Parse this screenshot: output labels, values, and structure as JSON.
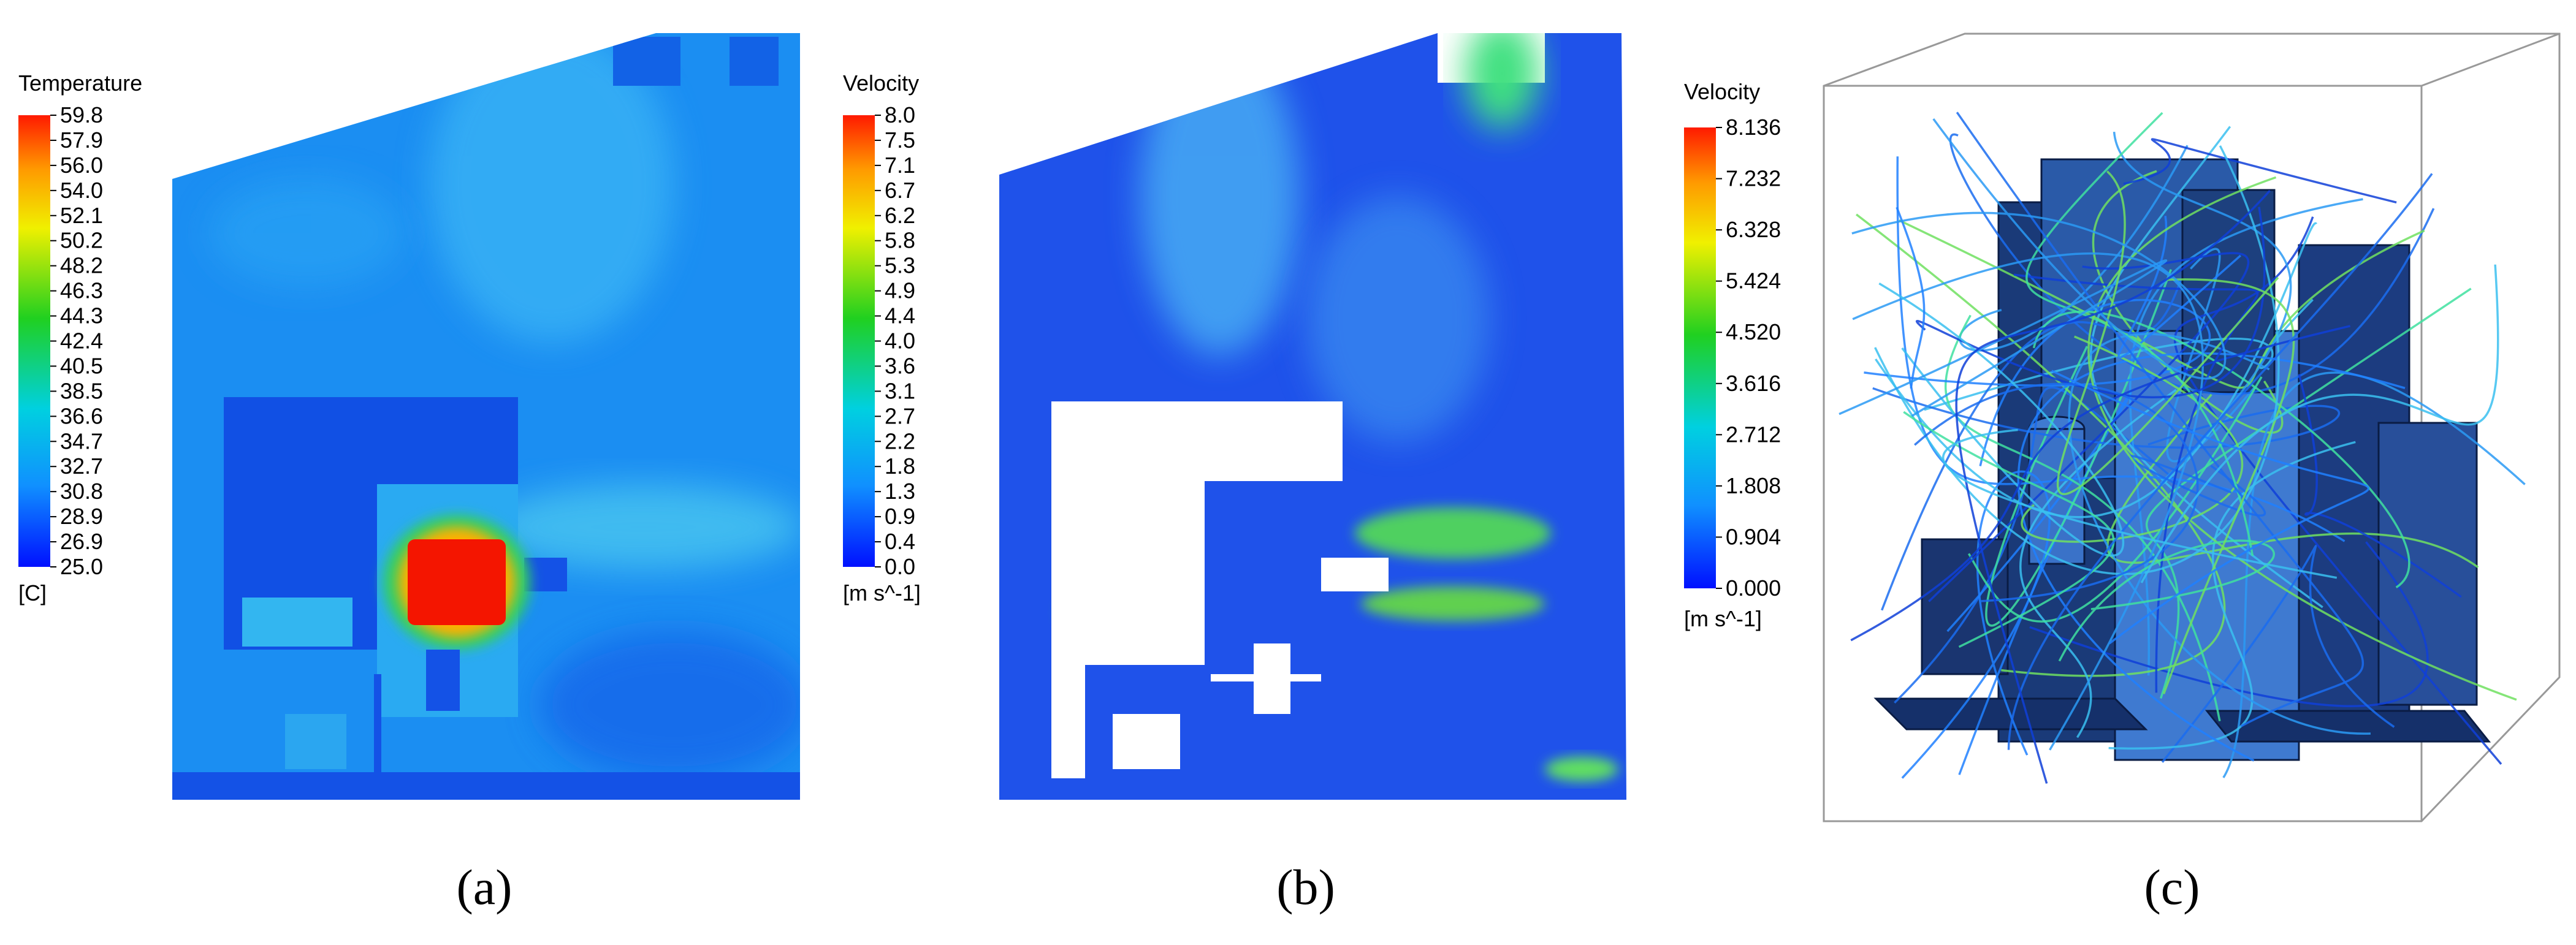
{
  "panels": [
    {
      "label": "(a)",
      "colorbar": {
        "title": "Temperature",
        "unit": "[C]",
        "ticks": [
          "59.8",
          "57.9",
          "56.0",
          "54.0",
          "52.1",
          "50.2",
          "48.2",
          "46.3",
          "44.3",
          "42.4",
          "40.5",
          "38.5",
          "36.6",
          "34.7",
          "32.7",
          "30.8",
          "28.9",
          "26.9",
          "25.0"
        ]
      }
    },
    {
      "label": "(b)",
      "colorbar": {
        "title": "Velocity",
        "unit": "[m s^-1]",
        "ticks": [
          "8.0",
          "7.5",
          "7.1",
          "6.7",
          "6.2",
          "5.8",
          "5.3",
          "4.9",
          "4.4",
          "4.0",
          "3.6",
          "3.1",
          "2.7",
          "2.2",
          "1.8",
          "1.3",
          "0.9",
          "0.4",
          "0.0"
        ]
      }
    },
    {
      "label": "(c)",
      "colorbar": {
        "title": "Velocity",
        "unit": "[m s^-1]",
        "ticks": [
          "8.136",
          "7.232",
          "6.328",
          "5.424",
          "4.520",
          "3.616",
          "2.712",
          "1.808",
          "0.904",
          "0.000"
        ]
      }
    }
  ]
}
